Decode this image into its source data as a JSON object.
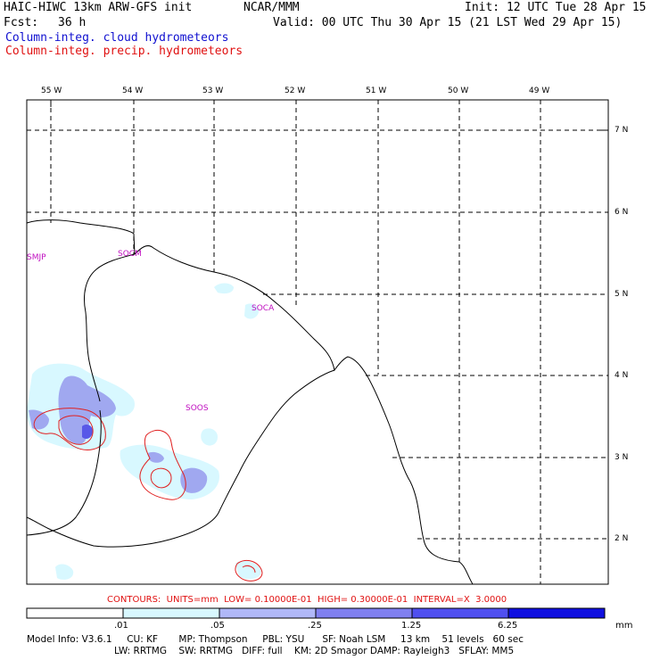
{
  "header": {
    "model": "HAIC-HIWC 13km ARW-GFS init",
    "org": "NCAR/MMM",
    "init": "Init: 12 UTC Tue 28 Apr 15",
    "fcst_label": "Fcst:",
    "fcst_value": "36 h",
    "valid": "Valid: 00 UTC Thu 30 Apr 15 (21 LST Wed 29 Apr 15)",
    "field_cloud": "Column-integ. cloud hydrometeors",
    "field_precip": "Column-integ. precip. hydrometeors"
  },
  "map": {
    "lon_labels": [
      "55 W",
      "54 W",
      "53 W",
      "52 W",
      "51 W",
      "50 W",
      "49 W"
    ],
    "lat_labels": [
      "7 N",
      "6 N",
      "5 N",
      "4 N",
      "3 N",
      "2 N"
    ],
    "stations": [
      "SMJP",
      "SOCM",
      "SOCA",
      "SOOS"
    ]
  },
  "contours_text": "CONTOURS:  UNITS=mm  LOW= 0.10000E-01  HIGH= 0.30000E-01  INTERVAL=X  3.0000",
  "colorbar": {
    "labels": [
      ".01",
      ".05",
      ".25",
      "1.25",
      "6.25"
    ],
    "unit": "mm",
    "colors": [
      "#ffffff",
      "#d8f8ff",
      "#b0b8f8",
      "#8080f0",
      "#5050f0",
      "#1010e0"
    ]
  },
  "model_info": {
    "line1": "Model Info: V3.6.1     CU: KF       MP: Thompson     PBL: YSU      SF: Noah LSM     13 km    51 levels   60 sec",
    "line2": "LW: RRTMG    SW: RRTMG   DIFF: full    KM: 2D Smagor DAMP: Rayleigh3   SFLAY: MM5"
  }
}
